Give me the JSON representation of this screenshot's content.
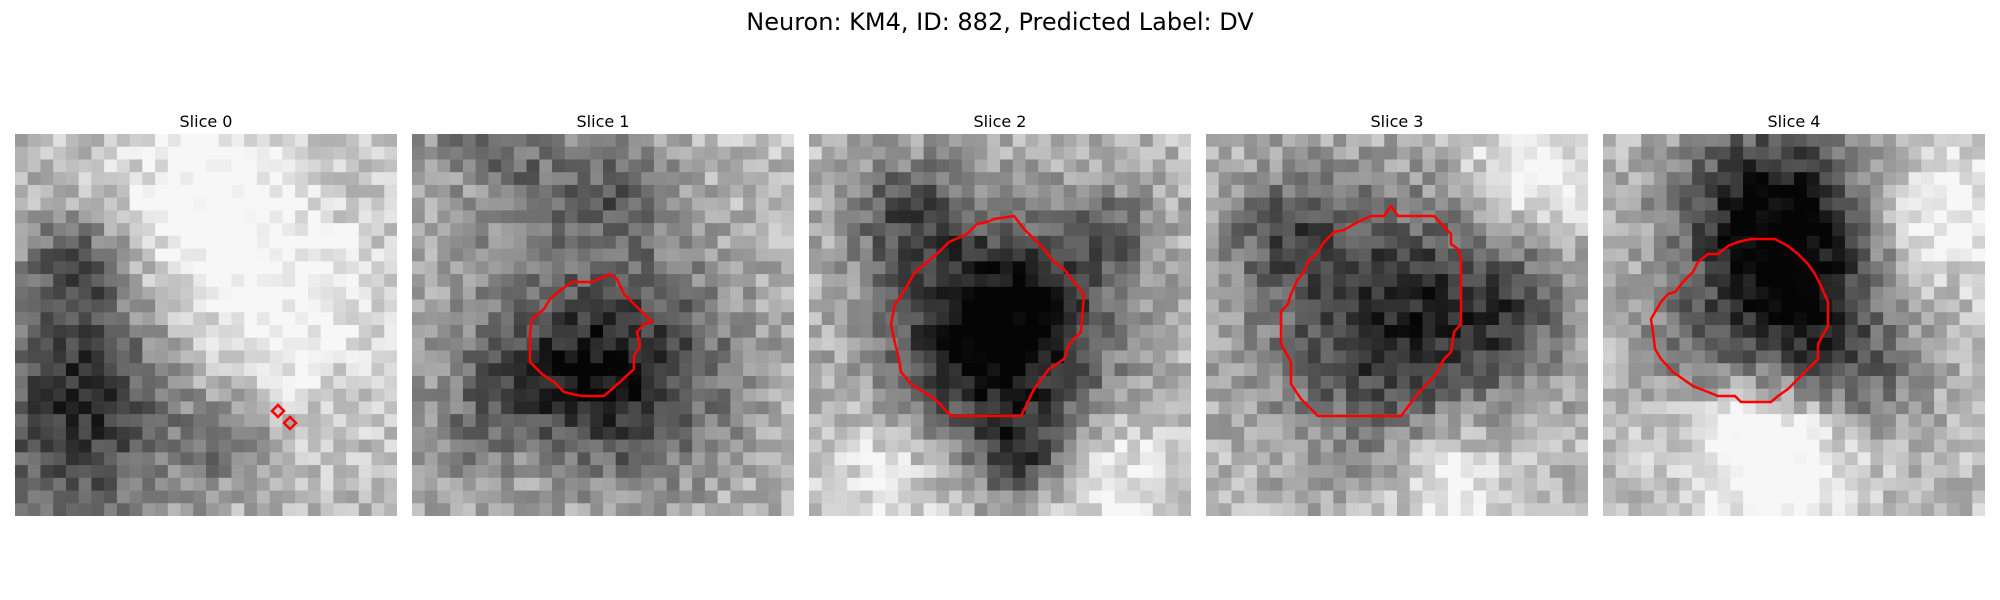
{
  "figure": {
    "title": "Neuron: KM4, ID: 882, Predicted Label: DV"
  },
  "panels": [
    {
      "title": "Slice 0"
    },
    {
      "title": "Slice 1"
    },
    {
      "title": "Slice 2"
    },
    {
      "title": "Slice 3"
    },
    {
      "title": "Slice 4"
    }
  ],
  "colors": {
    "contour": "#ff0000",
    "background": "#ffffff"
  },
  "image_style": "grayscale microscopy pixel grid"
}
